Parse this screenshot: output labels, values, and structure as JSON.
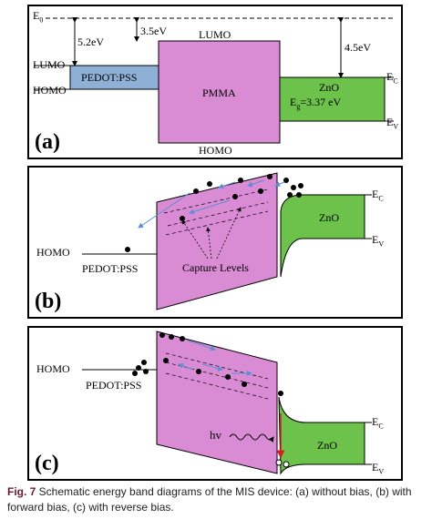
{
  "panel_a": {
    "letter": "(a)",
    "vacuum_level": "E",
    "vacuum_sub": "0",
    "gap_pedot": "5.2eV",
    "gap_pmma": "3.5eV",
    "gap_zno": "4.5eV",
    "lumo_left": "LUMO",
    "homo_left": "HOMO",
    "lumo_top": "LUMO",
    "homo_bottom": "HOMO",
    "pedot": "PEDOT:PSS",
    "pmma": "PMMA",
    "zno": "ZnO",
    "zno_gap": "E",
    "zno_gap_sub": "g",
    "zno_gap_value": "=3.37 eV",
    "ec": "E",
    "ec_sub": "C",
    "ev": "E",
    "ev_sub": "V"
  },
  "panel_b": {
    "letter": "(b)",
    "homo": "HOMO",
    "pedot": "PEDOT:PSS",
    "capture_levels": "Capture Levels",
    "zno": "ZnO",
    "ec": "E",
    "ec_sub": "C",
    "ev": "E",
    "ev_sub": "V"
  },
  "panel_c": {
    "letter": "(c)",
    "homo": "HOMO",
    "pedot": "PEDOT:PSS",
    "hv": "hv",
    "zno": "ZnO",
    "ec": "E",
    "ec_sub": "C",
    "ev": "E",
    "ev_sub": "V"
  },
  "caption": {
    "fig_label": "Fig. 7",
    "text": "  Schematic energy band diagrams of the MIS device: (a) without bias, (b) with forward bias, (c) with reverse bias."
  },
  "colors": {
    "pedot": "#8fb0d6",
    "pmma": "#d98cd4",
    "zno": "#6cc24a",
    "arrow": "#5b8fd0",
    "red_arrow": "#d02020"
  }
}
